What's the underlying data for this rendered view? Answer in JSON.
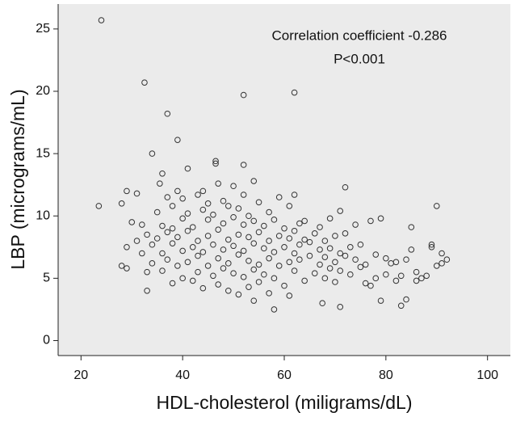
{
  "chart_data": {
    "type": "scatter",
    "x_label": "HDL-cholesterol (miligrams/dL)",
    "y_label": "LBP (micrograms/mL)",
    "annotations": [
      "Correlation coefficient -0.286",
      "P<0.001"
    ],
    "xlim": [
      15.5,
      104.5
    ],
    "ylim": [
      -1.2,
      27
    ],
    "xticks": [
      20,
      40,
      60,
      80,
      100
    ],
    "yticks": [
      0,
      5,
      10,
      15,
      20,
      25
    ],
    "marker_color": "#333333",
    "background": "#ebebeb",
    "x": [
      23.5,
      24,
      32.5,
      37,
      39,
      34,
      36,
      35.5,
      41,
      52,
      62,
      46.5,
      46.5,
      52,
      54,
      72,
      90,
      28,
      29,
      33,
      58,
      67.5,
      71,
      79,
      83,
      84,
      92,
      91,
      89,
      86,
      76,
      28,
      29,
      30,
      29,
      31,
      31,
      32,
      32,
      33,
      33,
      34,
      34,
      35,
      35,
      36,
      36,
      36,
      37,
      37,
      37,
      38,
      38,
      38,
      38,
      39,
      39,
      39,
      40,
      40,
      40,
      40,
      41,
      41,
      41,
      42,
      42,
      42,
      43,
      43,
      43,
      43,
      44,
      44,
      44,
      44,
      45,
      45,
      45,
      45,
      46,
      46,
      46,
      47,
      47,
      47,
      47,
      48,
      48,
      48,
      48,
      49,
      49,
      49,
      49,
      50,
      50,
      50,
      50,
      51,
      51,
      51,
      51,
      52,
      52,
      52,
      52,
      53,
      53,
      53,
      53,
      54,
      54,
      54,
      54,
      55,
      55,
      55,
      55,
      56,
      56,
      56,
      57,
      57,
      57,
      57,
      58,
      58,
      58,
      59,
      59,
      59,
      60,
      60,
      60,
      61,
      61,
      61,
      61,
      62,
      62,
      62,
      62,
      63,
      63,
      63,
      64,
      64,
      64,
      65,
      65,
      66,
      66,
      67,
      67,
      67,
      68,
      68,
      68,
      69,
      69,
      69,
      70,
      70,
      70,
      71,
      71,
      71,
      72,
      72,
      73,
      73,
      74,
      74,
      75,
      75,
      76,
      77,
      77,
      78,
      78,
      79,
      80,
      80,
      81,
      82,
      82,
      83,
      84,
      85,
      85,
      86,
      87,
      88,
      89,
      90,
      91
    ],
    "y": [
      10.8,
      25.7,
      20.7,
      18.2,
      16.1,
      15,
      13.4,
      12.6,
      13.8,
      19.7,
      19.9,
      14.4,
      14.2,
      14.1,
      12.8,
      12.3,
      10.8,
      6,
      5.8,
      4,
      2.5,
      3,
      2.7,
      3.2,
      2.8,
      3.3,
      6.5,
      7,
      7.5,
      4.8,
      4.6,
      11,
      12,
      9.5,
      7.5,
      8,
      11.8,
      9.3,
      7,
      5.5,
      8.5,
      7.7,
      6.2,
      10.3,
      8.2,
      7,
      9.2,
      5.6,
      8.7,
      11.5,
      6.5,
      7.8,
      9,
      4.6,
      10.8,
      6,
      8.3,
      12,
      7.2,
      9.8,
      5,
      11.4,
      8.8,
      6.3,
      10.2,
      7.5,
      4.8,
      9.1,
      8,
      6.8,
      11.7,
      5.5,
      10.5,
      7.1,
      4.2,
      12,
      8.4,
      6,
      9.7,
      11,
      7.7,
      5.2,
      10.1,
      8.9,
      6.6,
      4.5,
      12.6,
      7.3,
      9.4,
      5.8,
      11.2,
      8.1,
      6.2,
      10.8,
      4,
      7.6,
      9.9,
      5.4,
      12.4,
      8.5,
      6.9,
      3.7,
      10.6,
      7.2,
      9.3,
      5.1,
      11.7,
      8.3,
      6.4,
      4.3,
      10,
      7.8,
      5.7,
      9.6,
      3.2,
      8.7,
      6.1,
      11.1,
      4.7,
      7.4,
      9.2,
      5.3,
      8,
      6.6,
      10.3,
      3.8,
      7.1,
      9.7,
      5,
      8.4,
      6,
      11.5,
      7.5,
      9,
      4.4,
      8.2,
      6.3,
      10.8,
      3.6,
      7,
      8.8,
      5.6,
      11.7,
      7.7,
      6.5,
      9.4,
      8.1,
      4.8,
      9.6,
      6.8,
      7.9,
      8.6,
      5.4,
      7.3,
      6.1,
      9.1,
      8,
      5,
      6.7,
      7.4,
      9.8,
      5.8,
      6.3,
      8.4,
      4.7,
      7,
      10.4,
      5.6,
      6.8,
      8.6,
      7.5,
      5.3,
      6.5,
      9.3,
      5.9,
      7.7,
      6.1,
      9.6,
      4.4,
      6.9,
      5,
      9.8,
      6.6,
      5.3,
      6.2,
      6.3,
      4.8,
      5.2,
      6.5,
      7.3,
      9.1,
      5.5,
      5,
      5.2,
      7.7,
      6,
      6.2
    ]
  }
}
